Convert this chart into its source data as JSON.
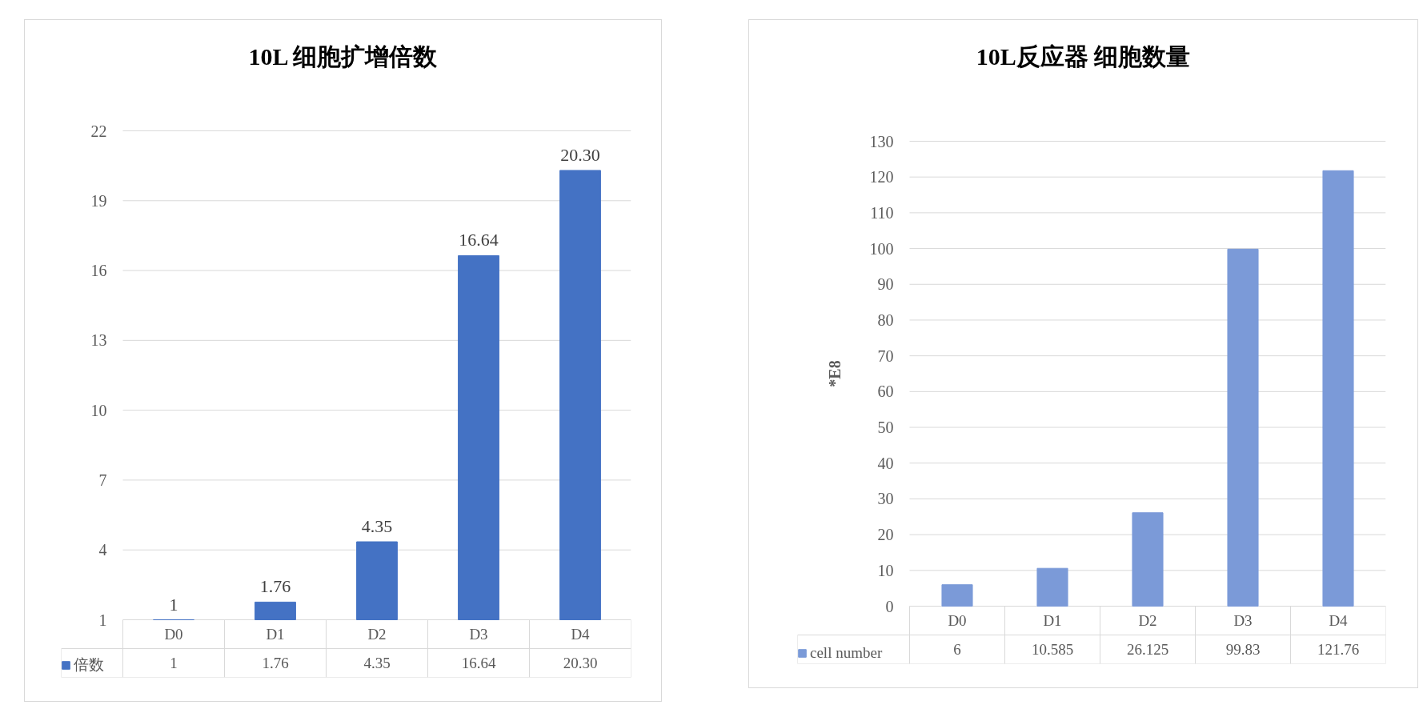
{
  "chart_data": [
    {
      "type": "bar",
      "title": "10L 细胞扩增倍数",
      "categories": [
        "D0",
        "D1",
        "D2",
        "D3",
        "D4"
      ],
      "series": [
        {
          "name": "倍数",
          "color": "#4472c4",
          "values": [
            1,
            1.76,
            4.35,
            16.64,
            20.3
          ],
          "value_labels": [
            "1",
            "1.76",
            "4.35",
            "16.64",
            "20.30"
          ]
        }
      ],
      "ylim": [
        1,
        22
      ],
      "yticks": [
        1,
        4,
        7,
        10,
        13,
        16,
        19,
        22
      ],
      "grid": "y",
      "legend": "bottom"
    },
    {
      "type": "bar",
      "title": "10L反应器 细胞数量",
      "ylabel": "*E8",
      "categories": [
        "D0",
        "D1",
        "D2",
        "D3",
        "D4"
      ],
      "series": [
        {
          "name": "cell number",
          "color": "#7b9ad8",
          "values": [
            6,
            10.585,
            26.125,
            99.83,
            121.76
          ]
        }
      ],
      "ylim": [
        0,
        130
      ],
      "yticks": [
        0,
        10,
        20,
        30,
        40,
        50,
        60,
        70,
        80,
        90,
        100,
        110,
        120,
        130
      ],
      "grid": "y",
      "legend": "bottom",
      "data_labels": true
    }
  ]
}
